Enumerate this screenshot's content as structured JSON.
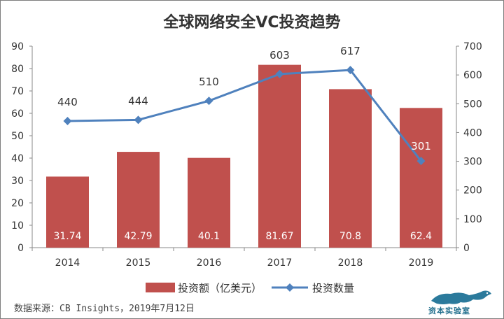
{
  "chart_data": {
    "type": "bar",
    "title": "全球网络安全VC投资趋势",
    "categories": [
      "2014",
      "2015",
      "2016",
      "2017",
      "2018",
      "2019"
    ],
    "series": [
      {
        "name": "投资额（亿美元）",
        "type": "bar",
        "axis": "left",
        "values": [
          31.74,
          42.79,
          40.1,
          81.67,
          70.8,
          62.4
        ],
        "color": "#c0504d",
        "labels": [
          "31.74",
          "42.79",
          "40.1",
          "81.67",
          "70.8",
          "62.4"
        ]
      },
      {
        "name": "投资数量",
        "type": "line",
        "axis": "right",
        "values": [
          440,
          444,
          510,
          603,
          617,
          301
        ],
        "color": "#4f81bd",
        "labels": [
          "440",
          "444",
          "510",
          "603",
          "617",
          "301"
        ]
      }
    ],
    "y_left": {
      "min": 0,
      "max": 90,
      "ticks": [
        "0",
        "10",
        "20",
        "30",
        "40",
        "50",
        "60",
        "70",
        "80",
        "90"
      ]
    },
    "y_right": {
      "min": 0,
      "max": 700,
      "ticks": [
        "0",
        "100",
        "200",
        "300",
        "400",
        "500",
        "600",
        "700"
      ]
    },
    "legend_position": "bottom",
    "grid": false
  },
  "source": "数据来源：CB Insights，2019年7月12日",
  "logo_text": "资本实验室"
}
